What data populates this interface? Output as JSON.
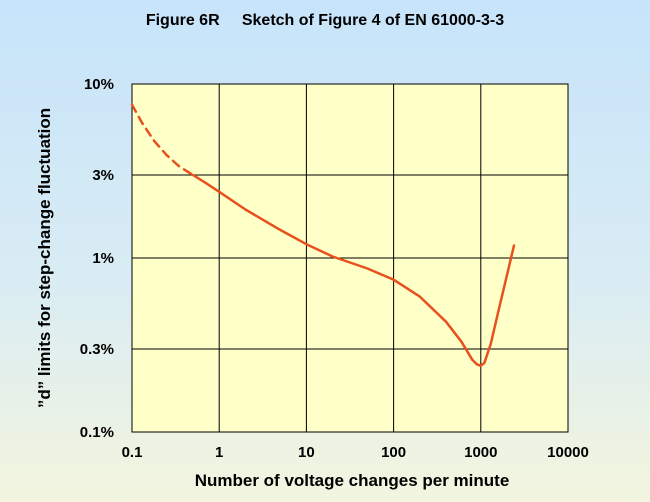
{
  "chart_data": {
    "type": "line",
    "title": "Figure 6R     Sketch of Figure 4 of EN 61000-3-3",
    "xlabel": "Number of voltage changes per minute",
    "ylabel": "”d” limits for step-change fluctuation",
    "x_scale": "log",
    "y_scale": "log",
    "xlim": [
      0.1,
      10000
    ],
    "ylim": [
      0.1,
      10
    ],
    "x_ticks": [
      {
        "value": 0.1,
        "label": "0.1"
      },
      {
        "value": 1,
        "label": "1"
      },
      {
        "value": 10,
        "label": "10"
      },
      {
        "value": 100,
        "label": "100"
      },
      {
        "value": 1000,
        "label": "1000"
      },
      {
        "value": 10000,
        "label": "10000"
      }
    ],
    "y_ticks": [
      {
        "value": 0.1,
        "label": "0.1%"
      },
      {
        "value": 0.3,
        "label": "0.3%"
      },
      {
        "value": 1,
        "label": "1%"
      },
      {
        "value": 3,
        "label": "3%"
      },
      {
        "value": 10,
        "label": "10%"
      }
    ],
    "grid": true,
    "plot_background": "#ffffc8",
    "series": [
      {
        "style": "dashed",
        "color": "#e8501e",
        "x": [
          0.1,
          0.13,
          0.18,
          0.25,
          0.35,
          0.5
        ],
        "y": [
          7.6,
          6.0,
          4.7,
          3.9,
          3.35,
          3.0
        ]
      },
      {
        "style": "solid",
        "color": "#e8501e",
        "x": [
          0.5,
          0.7,
          1,
          2,
          5,
          10,
          20,
          50,
          100,
          200,
          400,
          600,
          800,
          900,
          1000,
          1100,
          1300,
          1600,
          2000,
          2400
        ],
        "y": [
          3.0,
          2.7,
          2.4,
          1.9,
          1.45,
          1.2,
          1.02,
          0.87,
          0.75,
          0.6,
          0.43,
          0.33,
          0.26,
          0.245,
          0.24,
          0.25,
          0.32,
          0.5,
          0.8,
          1.18
        ]
      }
    ]
  }
}
